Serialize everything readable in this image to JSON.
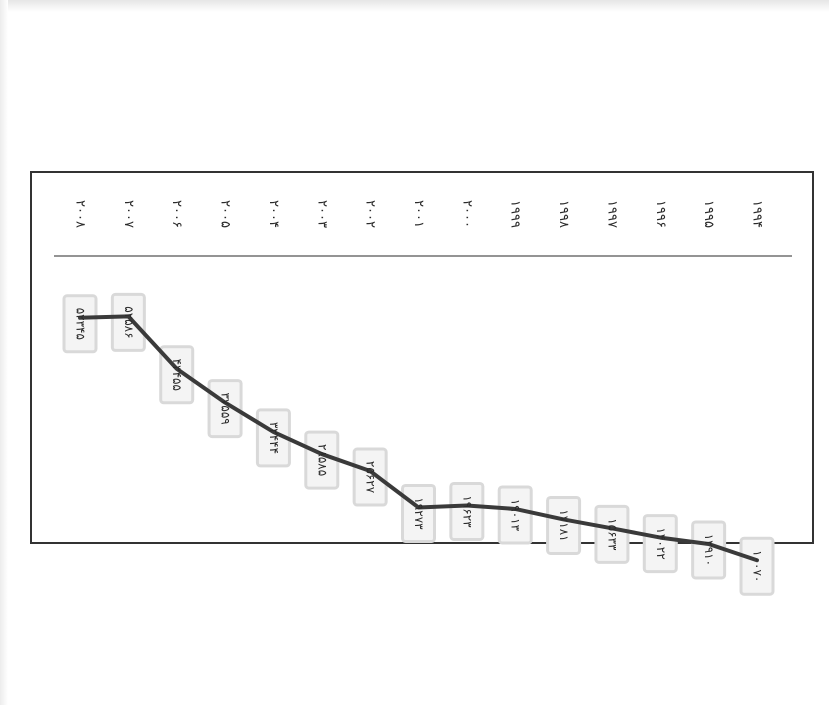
{
  "chart_data": {
    "type": "line",
    "x": [
      "۱۹۹۴",
      "۱۹۹۵",
      "۱۹۹۶",
      "۱۹۹۷",
      "۱۹۹۸",
      "۱۹۹۹",
      "۲۰۰۰",
      "۲۰۰۱",
      "۲۰۰۲",
      "۲۰۰۳",
      "۲۰۰۴",
      "۲۰۰۵",
      "۲۰۰۶",
      "۲۰۰۷",
      "۲۰۰۸"
    ],
    "value_labels": [
      "۱۰۰۷۰",
      "۱۲۹۱۰",
      "۱۴۰۲۲",
      "۱۵۶۳۳",
      "۱۷۱۸۱",
      "۱۹۰۱۳",
      "۱۹۶۲۳",
      "۱۹۲۷۳",
      "۲۵۶۲۷",
      "۲۸۵۸۵",
      "۳۲۴۴۴",
      "۳۷۵۵۹",
      "۴۳۴۵۵",
      "۵۲۵۸۶",
      "۵۲۳۴۵"
    ],
    "values": [
      10070,
      12910,
      14022,
      15633,
      17181,
      19013,
      19623,
      19273,
      25627,
      28585,
      32444,
      37559,
      43455,
      52586,
      52345
    ],
    "ylim": [
      0,
      60000
    ],
    "grid": false,
    "line_color": "#3a3a3a",
    "label_box_color": "#d9d9d9"
  }
}
